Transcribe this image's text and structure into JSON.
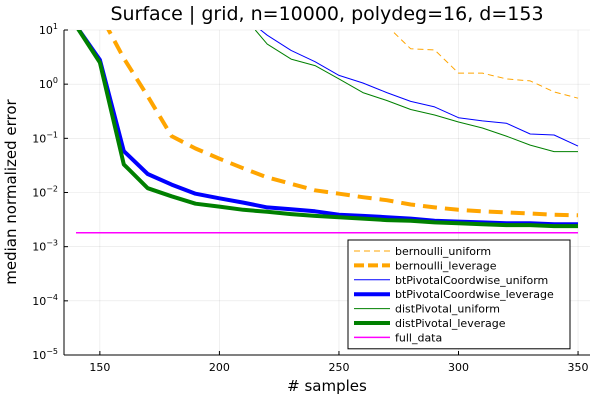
{
  "chart_data": {
    "type": "line",
    "title": "Surface | grid, n=10000, polydeg=16, d=153",
    "xlabel": "# samples",
    "ylabel": "median normalized error",
    "xlim": [
      135,
      355
    ],
    "ylim_log10": [
      -5,
      1
    ],
    "yscale": "log",
    "grid": true,
    "legend_position": "bottom-right",
    "x_ticks": [
      {
        "value": 150,
        "label": "150"
      },
      {
        "value": 200,
        "label": "200"
      },
      {
        "value": 250,
        "label": "250"
      },
      {
        "value": 300,
        "label": "300"
      },
      {
        "value": 350,
        "label": "350"
      }
    ],
    "y_ticks": [
      {
        "value": 1e-05,
        "base": "10",
        "exp": "−5"
      },
      {
        "value": 0.0001,
        "base": "10",
        "exp": "−4"
      },
      {
        "value": 0.001,
        "base": "10",
        "exp": "−3"
      },
      {
        "value": 0.01,
        "base": "10",
        "exp": "−2"
      },
      {
        "value": 0.1,
        "base": "10",
        "exp": "−1"
      },
      {
        "value": 1,
        "base": "10",
        "exp": "0"
      },
      {
        "value": 10,
        "base": "10",
        "exp": "1"
      }
    ],
    "series": [
      {
        "name": "bernoulli_uniform",
        "color": "#FFA500",
        "width": 1,
        "dash": "6,4",
        "x": [
          270,
          280,
          290,
          300,
          310,
          320,
          330,
          340,
          350
        ],
        "y": [
          12,
          4.5,
          4.3,
          1.6,
          1.6,
          1.25,
          1.15,
          0.72,
          0.55
        ]
      },
      {
        "name": "bernoulli_leverage",
        "color": "#FFA500",
        "width": 4,
        "dash": "14,8",
        "x": [
          140,
          150,
          160,
          170,
          180,
          190,
          200,
          210,
          220,
          230,
          240,
          250,
          260,
          270,
          280,
          290,
          300,
          310,
          320,
          330,
          340,
          350
        ],
        "y": [
          60,
          20,
          3,
          0.6,
          0.11,
          0.065,
          0.042,
          0.028,
          0.019,
          0.0145,
          0.011,
          0.0095,
          0.0082,
          0.0072,
          0.006,
          0.0053,
          0.0048,
          0.0045,
          0.0043,
          0.0041,
          0.0039,
          0.0038
        ]
      },
      {
        "name": "btPivotalCoordwise_uniform",
        "color": "#0000FF",
        "width": 1,
        "dash": "",
        "x": [
          215,
          220,
          230,
          240,
          250,
          260,
          270,
          280,
          290,
          300,
          310,
          320,
          330,
          340,
          350
        ],
        "y": [
          12,
          8,
          4.2,
          2.6,
          1.45,
          1.05,
          0.7,
          0.48,
          0.38,
          0.24,
          0.21,
          0.19,
          0.12,
          0.115,
          0.072
        ]
      },
      {
        "name": "btPivotalCoordwise_leverage",
        "color": "#0000FF",
        "width": 4,
        "dash": "",
        "x": [
          140,
          150,
          160,
          170,
          180,
          190,
          200,
          210,
          220,
          230,
          240,
          250,
          260,
          270,
          280,
          290,
          300,
          310,
          320,
          330,
          340,
          350
        ],
        "y": [
          12,
          2.8,
          0.058,
          0.022,
          0.014,
          0.0095,
          0.0078,
          0.0065,
          0.0053,
          0.0049,
          0.0045,
          0.0039,
          0.0037,
          0.0035,
          0.0033,
          0.003,
          0.0029,
          0.0028,
          0.0027,
          0.0027,
          0.0026,
          0.0026
        ]
      },
      {
        "name": "distPivotal_uniform",
        "color": "#008000",
        "width": 1,
        "dash": "",
        "x": [
          215,
          220,
          230,
          240,
          250,
          260,
          270,
          280,
          290,
          300,
          310,
          320,
          330,
          340,
          350
        ],
        "y": [
          10,
          5.5,
          2.9,
          2.2,
          1.25,
          0.7,
          0.5,
          0.34,
          0.27,
          0.2,
          0.155,
          0.11,
          0.075,
          0.057,
          0.057
        ]
      },
      {
        "name": "distPivotal_leverage",
        "color": "#008000",
        "width": 4,
        "dash": "",
        "x": [
          140,
          150,
          160,
          170,
          180,
          190,
          200,
          210,
          220,
          230,
          240,
          250,
          260,
          270,
          280,
          290,
          300,
          310,
          320,
          330,
          340,
          350
        ],
        "y": [
          12,
          2.5,
          0.033,
          0.012,
          0.0085,
          0.0062,
          0.0055,
          0.0048,
          0.0044,
          0.004,
          0.0037,
          0.0035,
          0.0033,
          0.0031,
          0.003,
          0.0028,
          0.0027,
          0.0026,
          0.0025,
          0.0025,
          0.0024,
          0.0024
        ]
      },
      {
        "name": "full_data",
        "color": "#FF00FF",
        "width": 1.5,
        "dash": "",
        "x": [
          140,
          350
        ],
        "y": [
          0.0018,
          0.0018
        ]
      }
    ]
  }
}
